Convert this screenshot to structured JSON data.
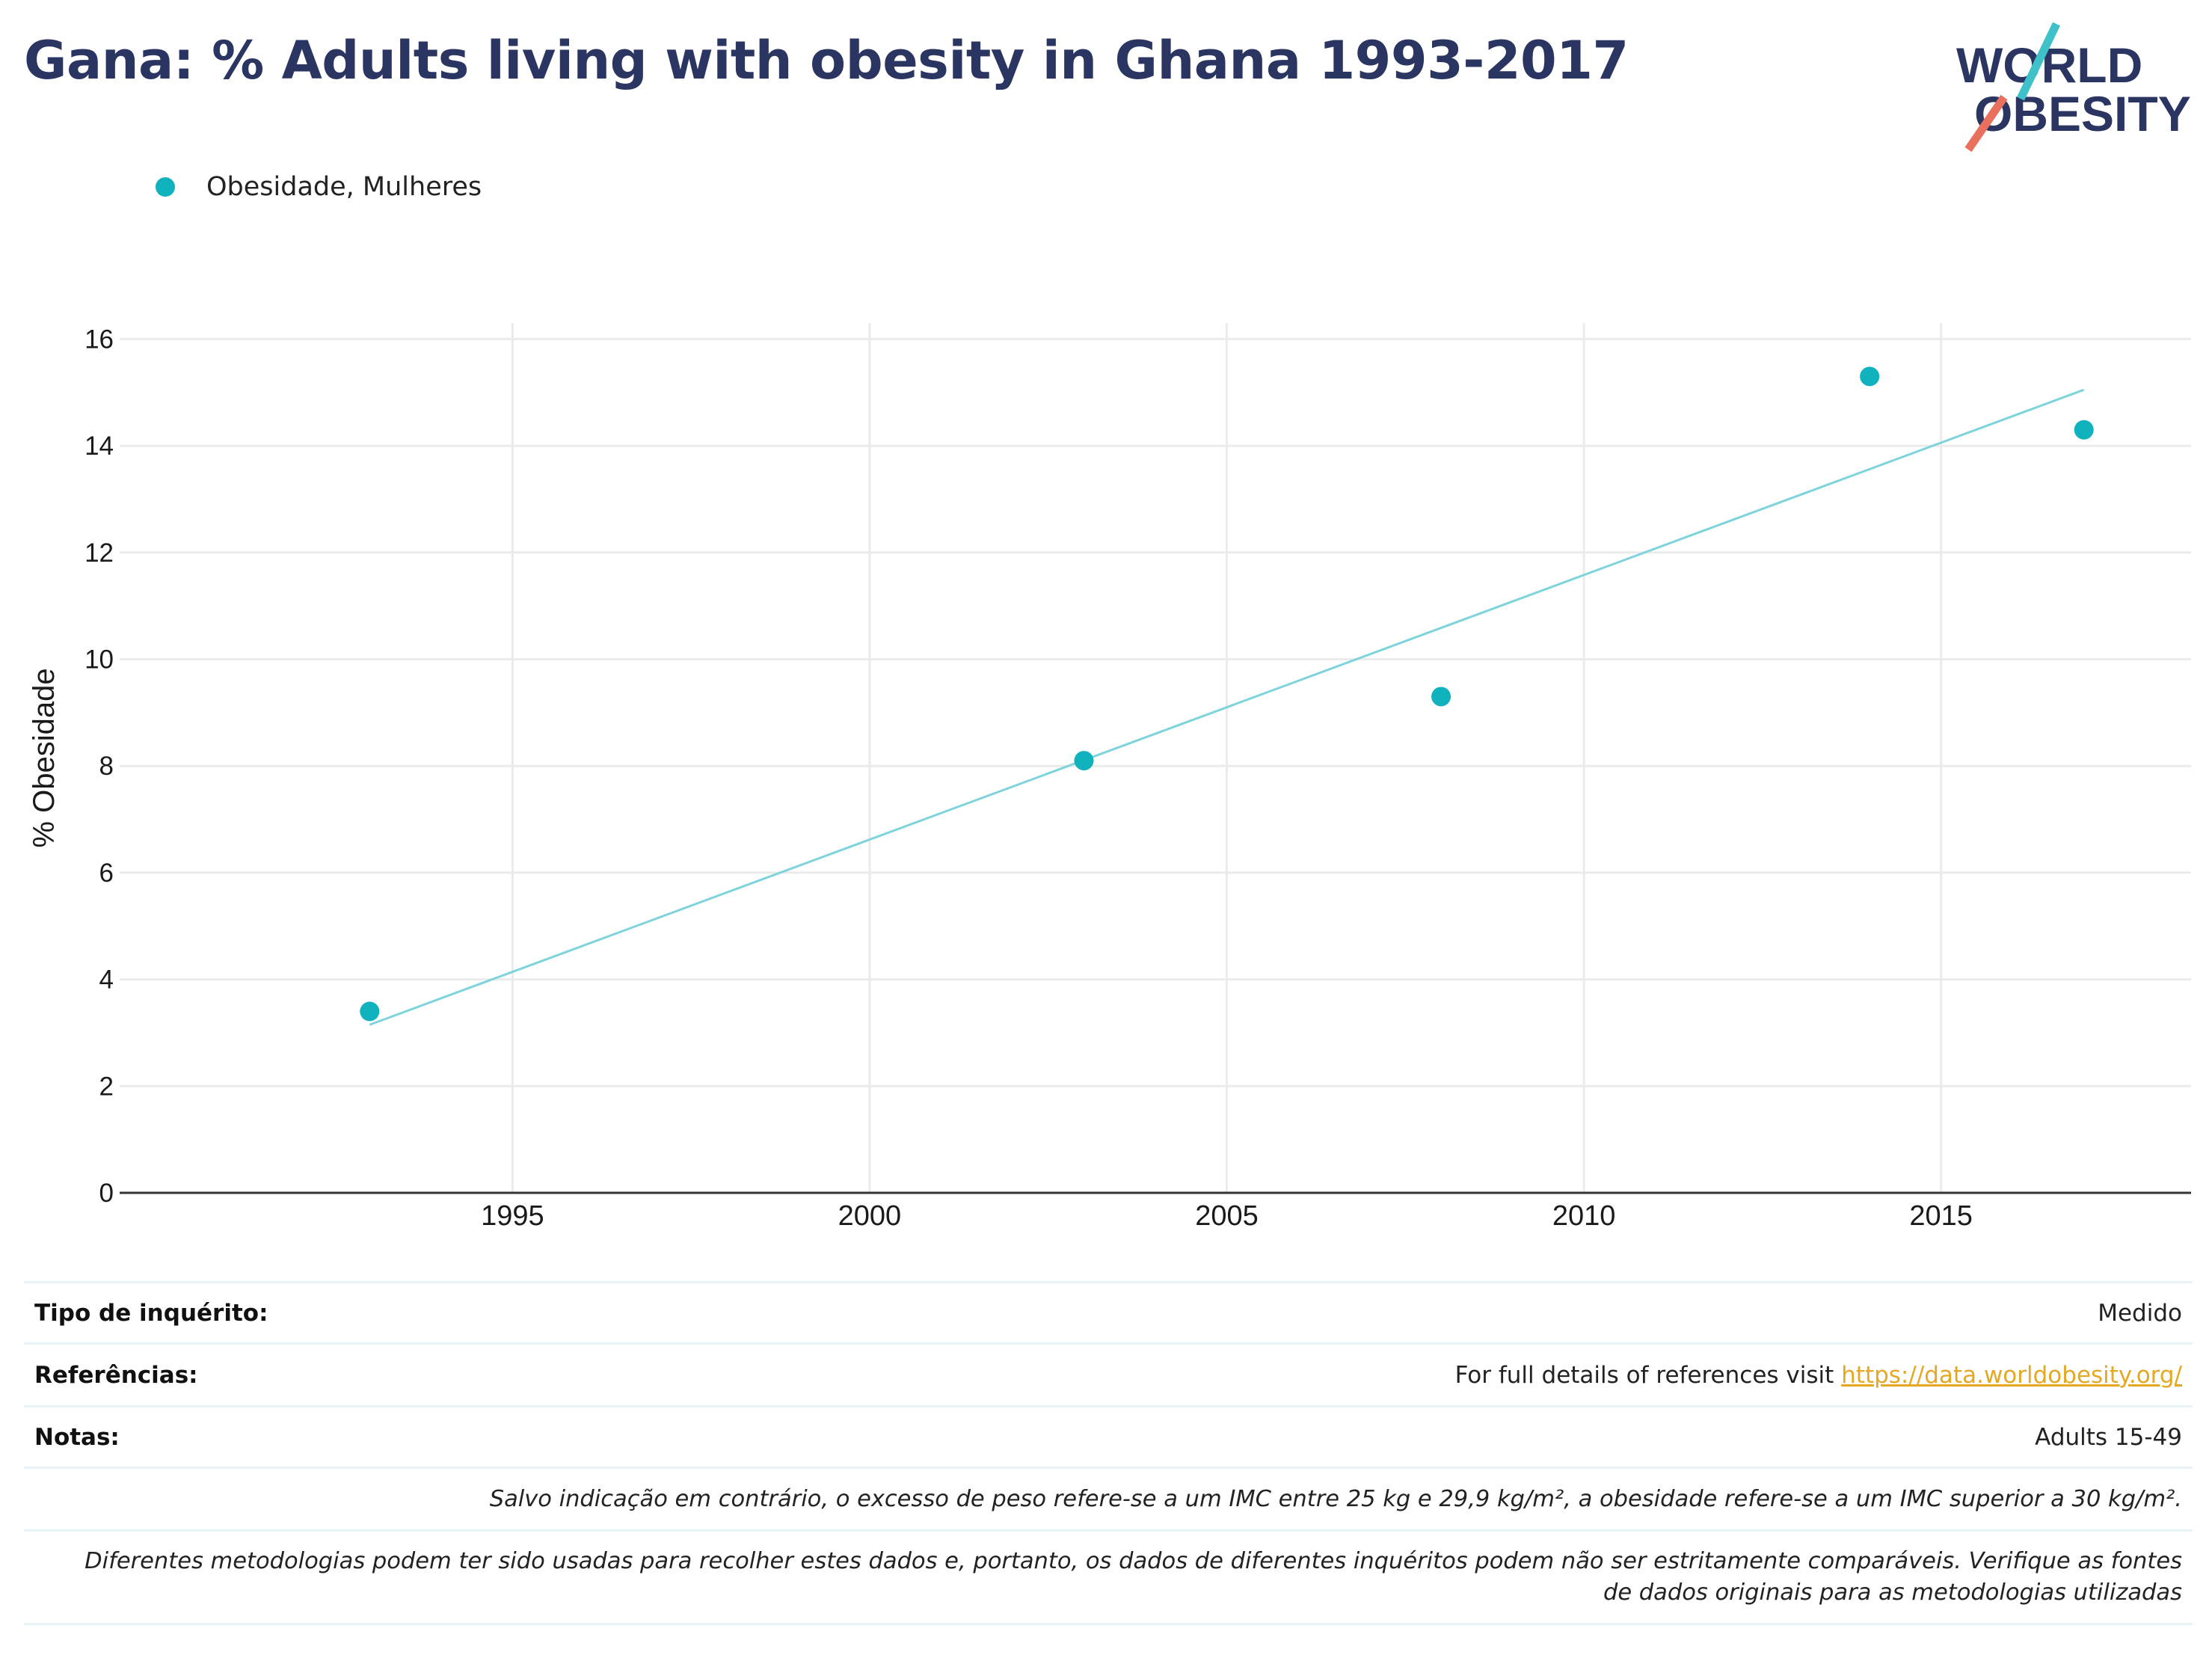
{
  "title": "Gana: % Adults living with obesity in Ghana 1993-2017",
  "logo": {
    "line1": "WORLD",
    "line2": "OBESITY"
  },
  "legend": {
    "label": "Obesidade, Mulheres"
  },
  "chart_data": {
    "type": "scatter",
    "title": "Gana: % Adults living with obesity in Ghana 1993-2017",
    "xlabel": "",
    "ylabel": "% Obesidade",
    "xlim": [
      1989.5,
      2018.5
    ],
    "ylim": [
      0,
      16.3
    ],
    "x_ticks": [
      1995,
      2000,
      2005,
      2010,
      2015
    ],
    "y_ticks": [
      0,
      2,
      4,
      6,
      8,
      10,
      12,
      14,
      16
    ],
    "grid": true,
    "legend_position": "top-left",
    "series": [
      {
        "name": "Obesidade, Mulheres",
        "color": "#0fb2bd",
        "x": [
          1993,
          2003,
          2008,
          2014,
          2017
        ],
        "y": [
          3.4,
          8.1,
          9.3,
          15.3,
          14.3
        ]
      }
    ],
    "trendline": {
      "color": "#7fd4dc",
      "x": [
        1993,
        2017
      ],
      "y": [
        3.15,
        15.05
      ]
    }
  },
  "footer": {
    "survey_type_label": "Tipo de inquérito:",
    "survey_type_value": "Medido",
    "references_label": "Referências:",
    "references_text": "For full details of references visit ",
    "references_link": "https://data.worldobesity.org/",
    "notes_label": "Notas:",
    "notes_value": "Adults 15-49",
    "note_bmi": "Salvo indicação em contrário, o excesso de peso refere-se a um IMC entre 25 kg e 29,9 kg/m², a obesidade refere-se a um IMC superior a 30 kg/m².",
    "note_methods_line1": "Diferentes metodologias podem ter sido usadas para recolher estes dados e, portanto, os dados de diferentes inquéritos podem não ser estritamente comparáveis. Verifique as fontes",
    "note_methods_line2": "de dados originais para as metodologias utilizadas"
  }
}
